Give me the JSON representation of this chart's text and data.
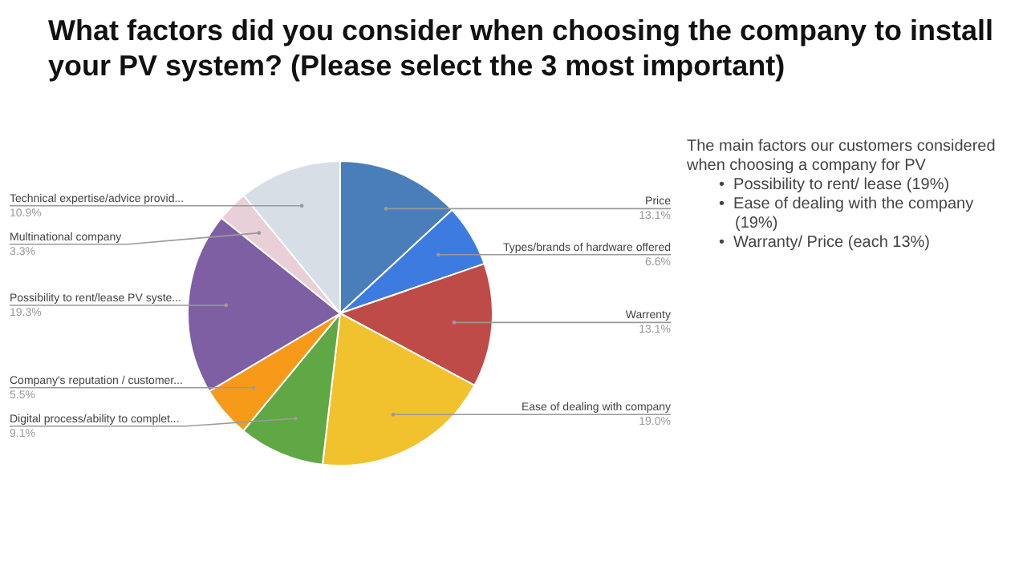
{
  "chart_data": {
    "type": "pie",
    "title": "What factors did you consider when choosing the company to install your PV system? (Please select the 3 most important)",
    "categories": [
      "Price",
      "Types/brands of hardware offered",
      "Warrenty",
      "Ease of dealing with company",
      "Digital process/ability to complet...",
      "Company's reputation / customer...",
      "Possibility to rent/lease PV syste...",
      "Multinational company",
      "Technical expertise/advice provid..."
    ],
    "values": [
      13.1,
      6.6,
      13.1,
      19.0,
      9.1,
      5.5,
      19.3,
      3.3,
      10.9
    ],
    "value_labels": [
      "13.1%",
      "6.6%",
      "13.1%",
      "19.0%",
      "9.1%",
      "5.5%",
      "19.3%",
      "3.3%",
      "10.9%"
    ],
    "colors": [
      "#4a7ebb",
      "#3d7be0",
      "#be4b48",
      "#f2c12e",
      "#5fa845",
      "#f79a1a",
      "#7f5fa3",
      "#e8cfd8",
      "#d7dee6"
    ],
    "annotations": [
      "The main factors our customers considered when choosing a company for PV",
      "•  Possibility to rent/ lease (19%)",
      "•  Ease of dealing with the company (19%)",
      "•  Warranty/ Price (each 13%)"
    ],
    "legend": false
  }
}
